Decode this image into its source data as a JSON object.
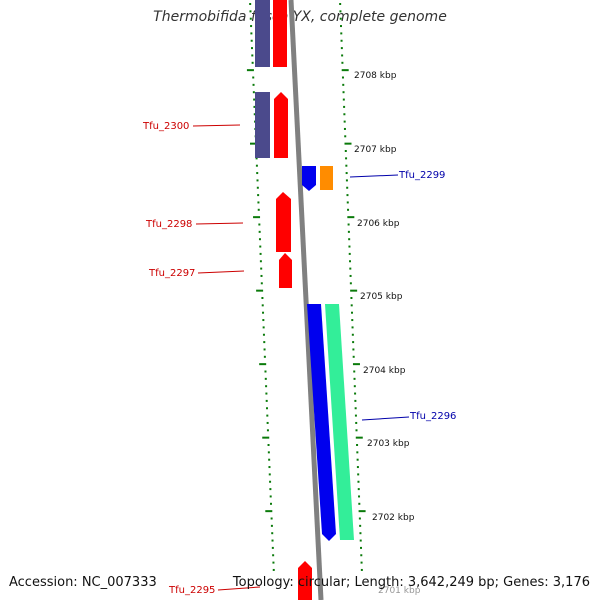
{
  "title": "Thermobifida fusca YX, complete genome",
  "footer": {
    "accession": "Accession: NC_007333",
    "summary": "Topology: circular; Length: 3,642,249 bp; Genes: 3,176"
  },
  "scale_labels": [
    "2708 kbp",
    "2707 kbp",
    "2706 kbp",
    "2705 kbp",
    "2704 kbp",
    "2703 kbp",
    "2702 kbp",
    "2701 kbp"
  ],
  "gene_labels": [
    {
      "name": "Tfu_2300",
      "strand": "reverse"
    },
    {
      "name": "Tfu_2299",
      "strand": "forward"
    },
    {
      "name": "Tfu_2298",
      "strand": "reverse"
    },
    {
      "name": "Tfu_2297",
      "strand": "reverse"
    },
    {
      "name": "Tfu_2296",
      "strand": "forward"
    },
    {
      "name": "Tfu_2295",
      "strand": "reverse"
    }
  ],
  "colors": {
    "reverse_label": "#cc0000",
    "forward_label": "#0000aa",
    "red_feature": "#ff0000",
    "navy_feature": "#4b4a8c",
    "blue_feature": "#0000ee",
    "orange_feature": "#ff8c00",
    "green_feature": "#33ee99",
    "tick": "#0a7a0a",
    "backbone": "#808080"
  }
}
